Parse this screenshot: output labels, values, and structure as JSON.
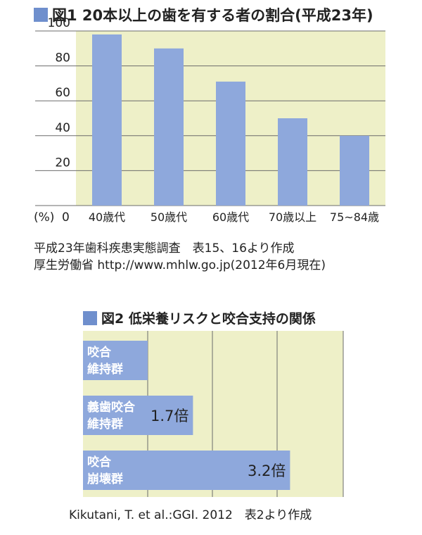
{
  "chart_data": [
    {
      "type": "bar",
      "title": "図1 20本以上の歯を有する者の割合(平成23年)",
      "categories": [
        "40歳代",
        "50歳代",
        "60歳代",
        "70歳以上",
        "75~84歳"
      ],
      "values": [
        98,
        90,
        71,
        50,
        40
      ],
      "ylim": [
        0,
        100
      ],
      "yticks": [
        "20",
        "40",
        "60",
        "80",
        "100"
      ],
      "ylabel": "(%)",
      "zero_label": "0",
      "grid": true,
      "colors": {
        "bar": "#8ea8dc",
        "background": "#eef0c8",
        "grid": "#6b6b6b"
      }
    },
    {
      "type": "bar",
      "orientation": "horizontal",
      "title": "図2 低栄養リスクと咬合支持の関係",
      "categories": [
        {
          "line1": "咬合",
          "line2": "維持群"
        },
        {
          "line1": "義歯咬合",
          "line2": "維持群"
        },
        {
          "line1": "咬合",
          "line2": "崩壊群"
        }
      ],
      "values": [
        1.0,
        1.7,
        3.2
      ],
      "value_labels": [
        "",
        "1.7倍",
        "3.2倍"
      ],
      "grid": true,
      "colors": {
        "bar": "#8ea8dc",
        "background": "#eef0c8",
        "grid": "#6b6b6b"
      }
    }
  ],
  "fig1": {
    "marker_color": "#6f8fcd",
    "title": "図1 20本以上の歯を有する者の割合(平成23年)",
    "note_line1": "平成23年歯科疾患実態調査　表15、16より作成",
    "note_line2": "厚生労働省 http://www.mhlw.go.jp(2012年6月現在)"
  },
  "fig2": {
    "title": "図2 低栄養リスクと咬合支持の関係",
    "source": "Kikutani, T. et al.:GGI. 2012　表2より作成"
  }
}
